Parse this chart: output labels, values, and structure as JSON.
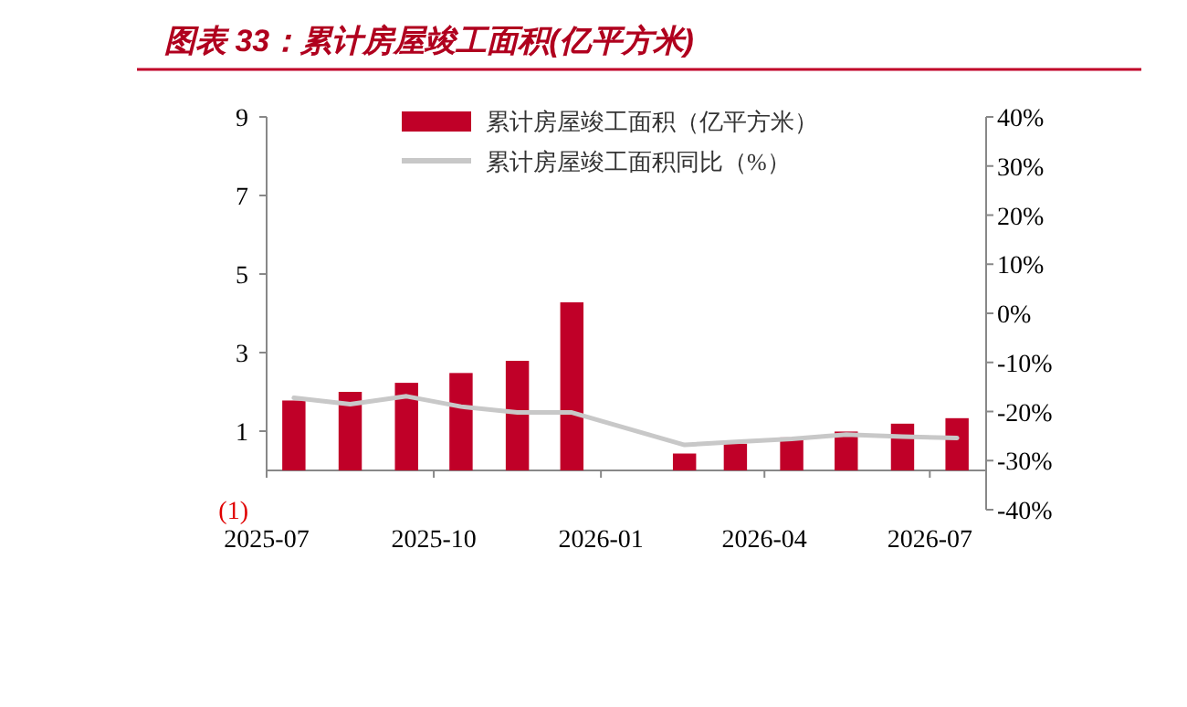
{
  "chart_data": {
    "type": "bar",
    "title": "图表 33：累计房屋竣工面积(亿平方米)",
    "x": [
      "2025-07-16",
      "2025-08-16",
      "2025-09-16",
      "2025-10-16",
      "2025-11-16",
      "2025-12-16",
      "2026-02-16",
      "2026-03-16",
      "2026-04-16",
      "2026-05-16",
      "2026-06-16",
      "2026-07-16"
    ],
    "xlim": [
      "2025-07-01",
      "2026-08-01"
    ],
    "xticks": [
      "2025-07",
      "2025-10",
      "2026-01",
      "2026-04",
      "2026-07"
    ],
    "ylim": [
      -1,
      9
    ],
    "yticks": [
      {
        "value": -1,
        "label": "(1)"
      },
      1,
      3,
      5,
      7,
      9
    ],
    "y2lim": [
      -40,
      40
    ],
    "y2ticks": [
      {
        "value": 40,
        "label": "40%"
      },
      {
        "value": 30,
        "label": "30%"
      },
      {
        "value": 20,
        "label": "20%"
      },
      {
        "value": 10,
        "label": "10%"
      },
      {
        "value": 0,
        "label": "0%"
      },
      {
        "value": -10,
        "label": "-10%"
      },
      {
        "value": -20,
        "label": "-20%"
      },
      {
        "value": -30,
        "label": "-30%"
      },
      {
        "value": -40,
        "label": "-40%"
      }
    ],
    "series": [
      {
        "name": "累计房屋竣工面积（亿平方米）",
        "color": "#c00028",
        "values": [
          1.78,
          2.0,
          2.23,
          2.48,
          2.79,
          4.28,
          0.43,
          0.68,
          0.84,
          0.99,
          1.19,
          1.33
        ]
      },
      {
        "name": "累计房屋竣工面积同比（%）",
        "type": "line",
        "axis": "y2",
        "color": "#c8c8c8",
        "values": [
          -17.2,
          -18.5,
          -16.9,
          -19.0,
          -20.2,
          -20.2,
          -26.8,
          -26.2,
          -25.6,
          -24.7,
          -25.1,
          -25.4
        ]
      }
    ],
    "legend": "top",
    "grid": false
  }
}
